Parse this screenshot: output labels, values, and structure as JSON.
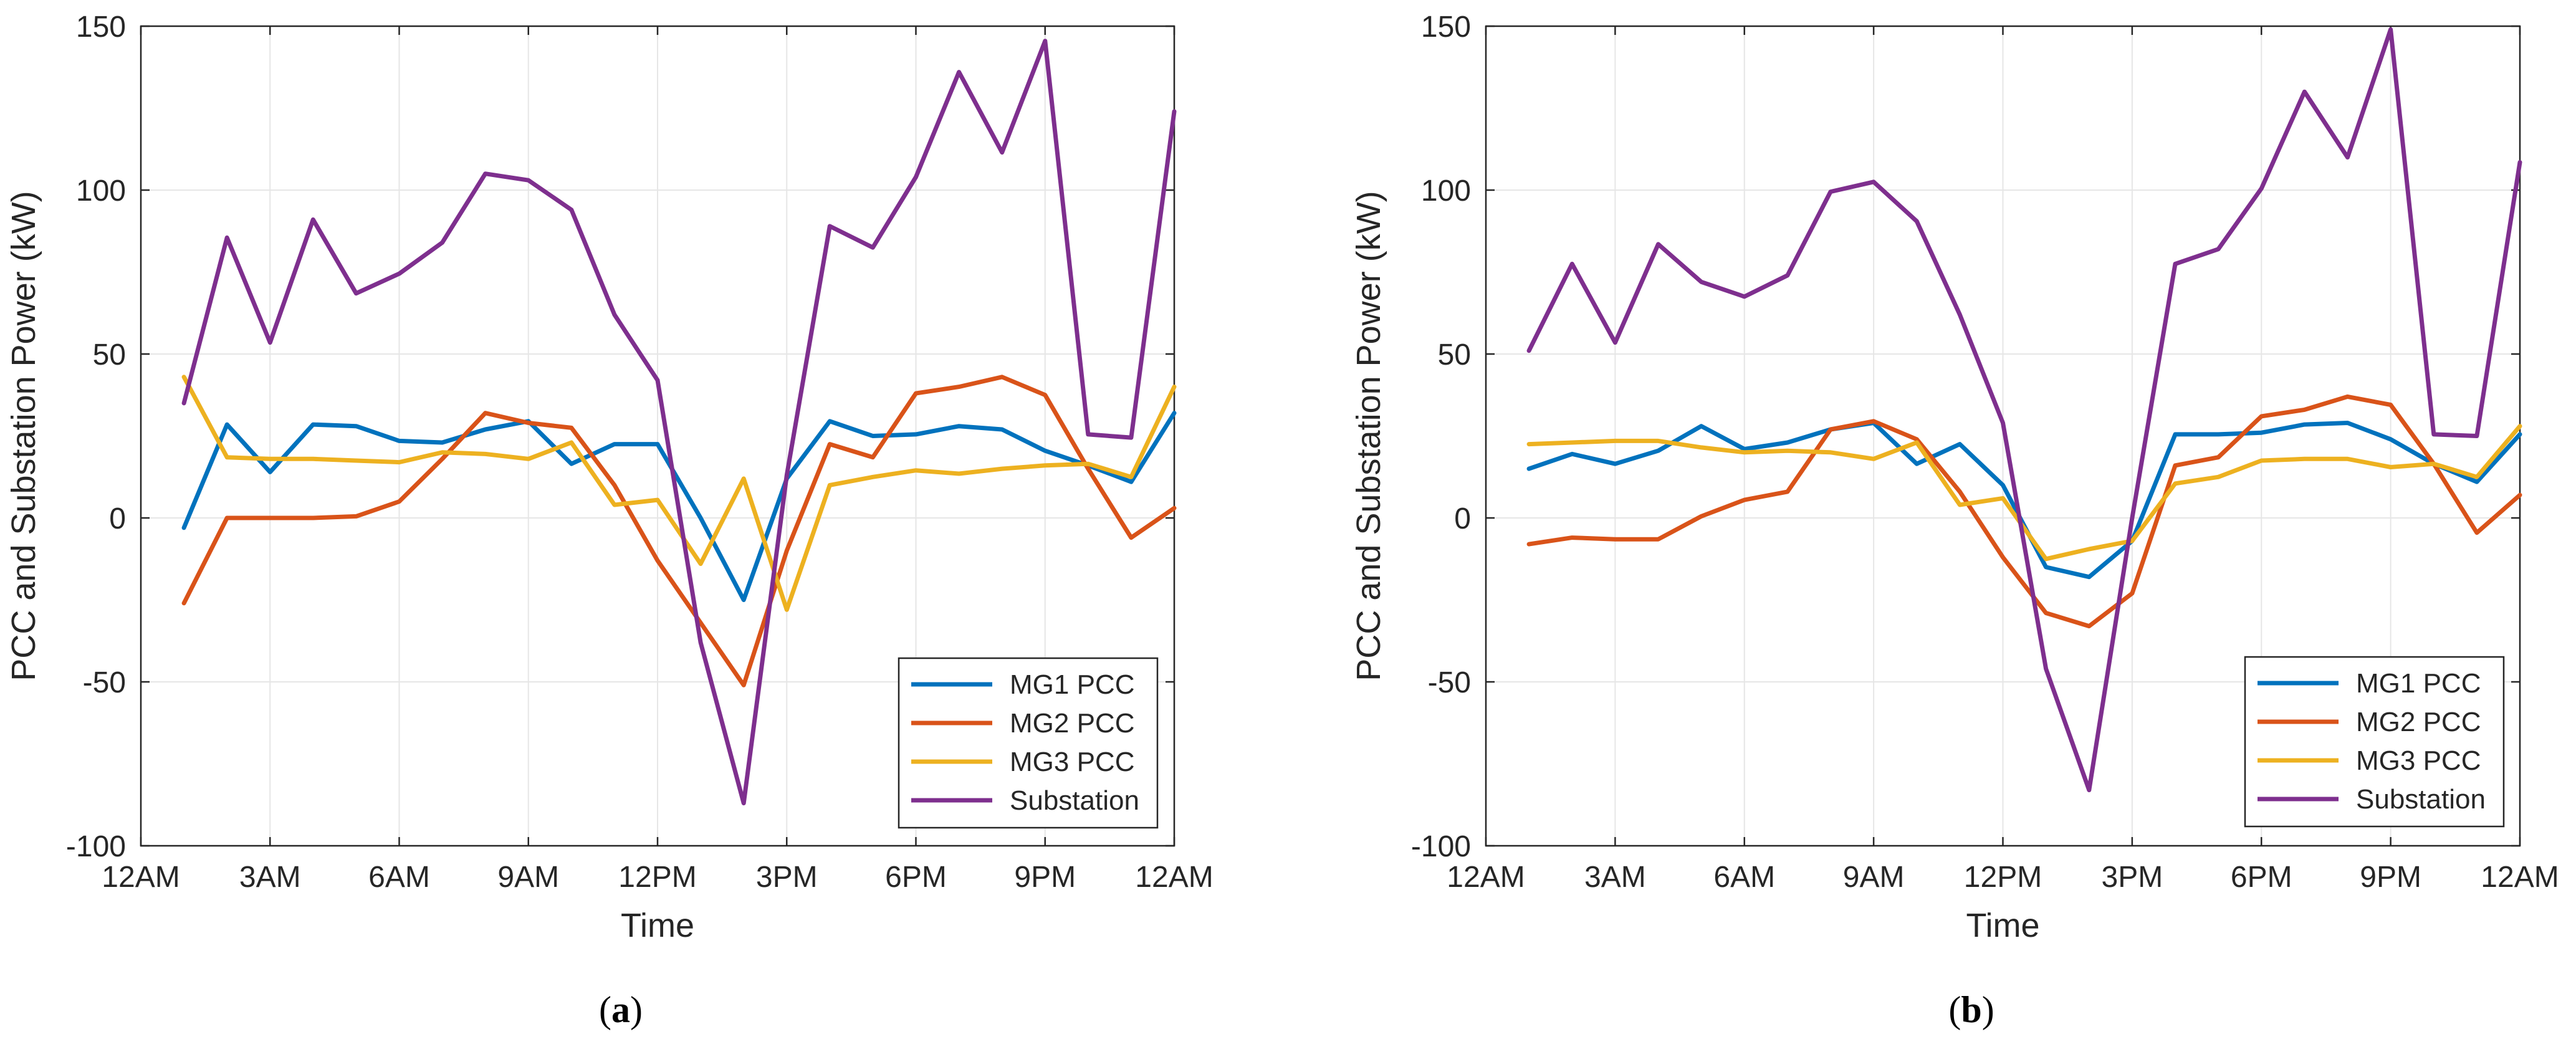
{
  "colors": {
    "mg1": "#0072BD",
    "mg2": "#D95319",
    "mg3": "#EDB120",
    "substation": "#7E2F8E",
    "grid": "#e6e6e6",
    "axis": "#262626"
  },
  "chart_data": [
    {
      "type": "line",
      "panel_label": "a",
      "xlabel": "Time",
      "ylabel": "PCC and Substation Power (kW)",
      "ylim": [
        -100,
        150
      ],
      "xlim": [
        0,
        24
      ],
      "x_ticks": [
        0,
        3,
        6,
        9,
        12,
        15,
        18,
        21,
        24
      ],
      "x_tick_labels": [
        "12AM",
        "3AM",
        "6AM",
        "9AM",
        "12PM",
        "3PM",
        "6PM",
        "9PM",
        "12AM"
      ],
      "y_ticks": [
        -100,
        -50,
        0,
        50,
        100,
        150
      ],
      "y_tick_labels": [
        "-100",
        "-50",
        "0",
        "50",
        "100",
        "150"
      ],
      "grid": true,
      "legend_position": "bottom-right",
      "x": [
        1,
        2,
        3,
        4,
        5,
        6,
        7,
        8,
        9,
        10,
        11,
        12,
        13,
        14,
        15,
        16,
        17,
        18,
        19,
        20,
        21,
        22,
        23,
        24
      ],
      "series": [
        {
          "key": "mg1",
          "name": "MG1 PCC",
          "values": [
            -3,
            28.5,
            14,
            28.5,
            28,
            23.5,
            23,
            27,
            29.5,
            16.5,
            22.5,
            22.5,
            0,
            -25,
            12,
            29.5,
            25,
            25.5,
            28,
            27,
            20.5,
            16,
            11,
            32
          ]
        },
        {
          "key": "mg2",
          "name": "MG2 PCC",
          "values": [
            -26,
            0,
            0,
            0,
            0.5,
            5,
            18,
            32,
            29,
            27.5,
            10,
            -13,
            -32,
            -51,
            -10,
            22.5,
            18.5,
            38,
            40,
            43,
            37.5,
            15,
            -6,
            3
          ]
        },
        {
          "key": "mg3",
          "name": "MG3 PCC",
          "values": [
            43,
            18.5,
            18,
            18,
            17.5,
            17,
            20,
            19.5,
            18,
            23,
            4,
            5.5,
            -14,
            12,
            -28,
            10,
            12.5,
            14.5,
            13.5,
            15,
            16,
            16.5,
            12.5,
            40
          ]
        },
        {
          "key": "substation",
          "name": "Substation",
          "values": [
            35,
            85.5,
            53.5,
            91,
            68.5,
            74.5,
            84,
            105,
            103,
            94,
            62,
            42,
            -38,
            -87,
            13,
            89,
            82.5,
            104,
            136,
            111.5,
            145.5,
            25.5,
            24.5,
            124
          ]
        }
      ]
    },
    {
      "type": "line",
      "panel_label": "b",
      "xlabel": "Time",
      "ylabel": "PCC and Substation Power (kW)",
      "ylim": [
        -100,
        150
      ],
      "xlim": [
        0,
        24
      ],
      "x_ticks": [
        0,
        3,
        6,
        9,
        12,
        15,
        18,
        21,
        24
      ],
      "x_tick_labels": [
        "12AM",
        "3AM",
        "6AM",
        "9AM",
        "12PM",
        "3PM",
        "6PM",
        "9PM",
        "12AM"
      ],
      "y_ticks": [
        -100,
        -50,
        0,
        50,
        100,
        150
      ],
      "y_tick_labels": [
        "-100",
        "-50",
        "0",
        "50",
        "100",
        "150"
      ],
      "grid": true,
      "legend_position": "bottom-right",
      "x": [
        1,
        2,
        3,
        4,
        5,
        6,
        7,
        8,
        9,
        10,
        11,
        12,
        13,
        14,
        15,
        16,
        17,
        18,
        19,
        20,
        21,
        22,
        23,
        24
      ],
      "series": [
        {
          "key": "mg1",
          "name": "MG1 PCC",
          "values": [
            15,
            19.5,
            16.5,
            20.5,
            28,
            21,
            23,
            27,
            29,
            16.5,
            22.5,
            10,
            -15,
            -18,
            -7,
            25.5,
            25.5,
            26,
            28.5,
            29,
            24,
            16.5,
            11,
            25.5
          ]
        },
        {
          "key": "mg2",
          "name": "MG2 PCC",
          "values": [
            -8,
            -6,
            -6.5,
            -6.5,
            0.5,
            5.5,
            8,
            27,
            29.5,
            24,
            8,
            -12,
            -29,
            -33,
            -23,
            16,
            18.5,
            31,
            33,
            37,
            34.5,
            16.5,
            -4.5,
            7
          ]
        },
        {
          "key": "mg3",
          "name": "MG3 PCC",
          "values": [
            22.5,
            23,
            23.5,
            23.5,
            21.5,
            20,
            20.5,
            20,
            18,
            23,
            4,
            6,
            -12.5,
            -9.5,
            -7,
            10.5,
            12.5,
            17.5,
            18,
            18,
            15.5,
            16.5,
            12.5,
            28
          ]
        },
        {
          "key": "substation",
          "name": "Substation",
          "values": [
            51,
            77.5,
            53.5,
            83.5,
            72,
            67.5,
            74,
            99.5,
            102.5,
            90.5,
            62,
            29,
            -46,
            -83,
            0,
            77.5,
            82,
            100.5,
            130,
            110,
            149,
            25.5,
            25,
            108.5
          ]
        }
      ]
    }
  ]
}
